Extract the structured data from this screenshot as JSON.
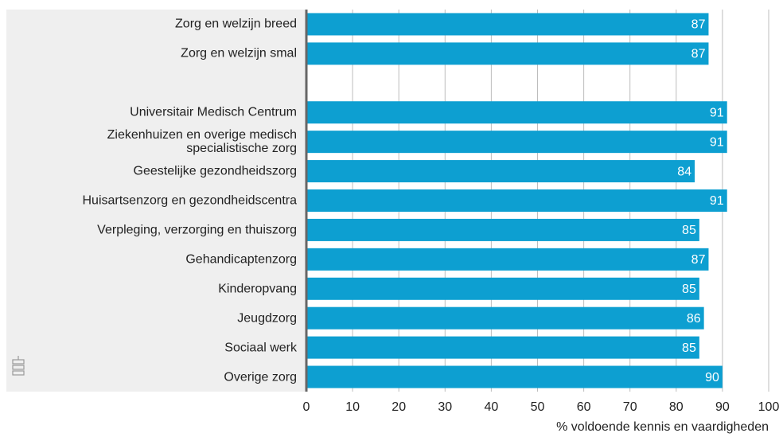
{
  "chart_data": {
    "type": "bar",
    "orientation": "horizontal",
    "categories": [
      "Zorg en welzijn breed",
      "Zorg en welzijn smal",
      null,
      "Universitair Medisch Centrum",
      "Ziekenhuizen en overige medisch\nspecialistische zorg",
      "Geestelijke gezondheidszorg",
      "Huisartsenzorg en gezondheidscentra",
      "Verpleging, verzorging en thuiszorg",
      "Gehandicaptenzorg",
      "Kinderopvang",
      "Jeugdzorg",
      "Sociaal werk",
      "Overige zorg"
    ],
    "values": [
      87,
      87,
      null,
      91,
      91,
      84,
      91,
      85,
      87,
      85,
      86,
      85,
      90
    ],
    "color": "#0d9fd1",
    "xlim": [
      0,
      100
    ],
    "xticks": [
      0,
      10,
      20,
      30,
      40,
      50,
      60,
      70,
      80,
      90,
      100
    ],
    "xlabel": "% voldoende kennis en vaardigheden",
    "grid": true
  }
}
